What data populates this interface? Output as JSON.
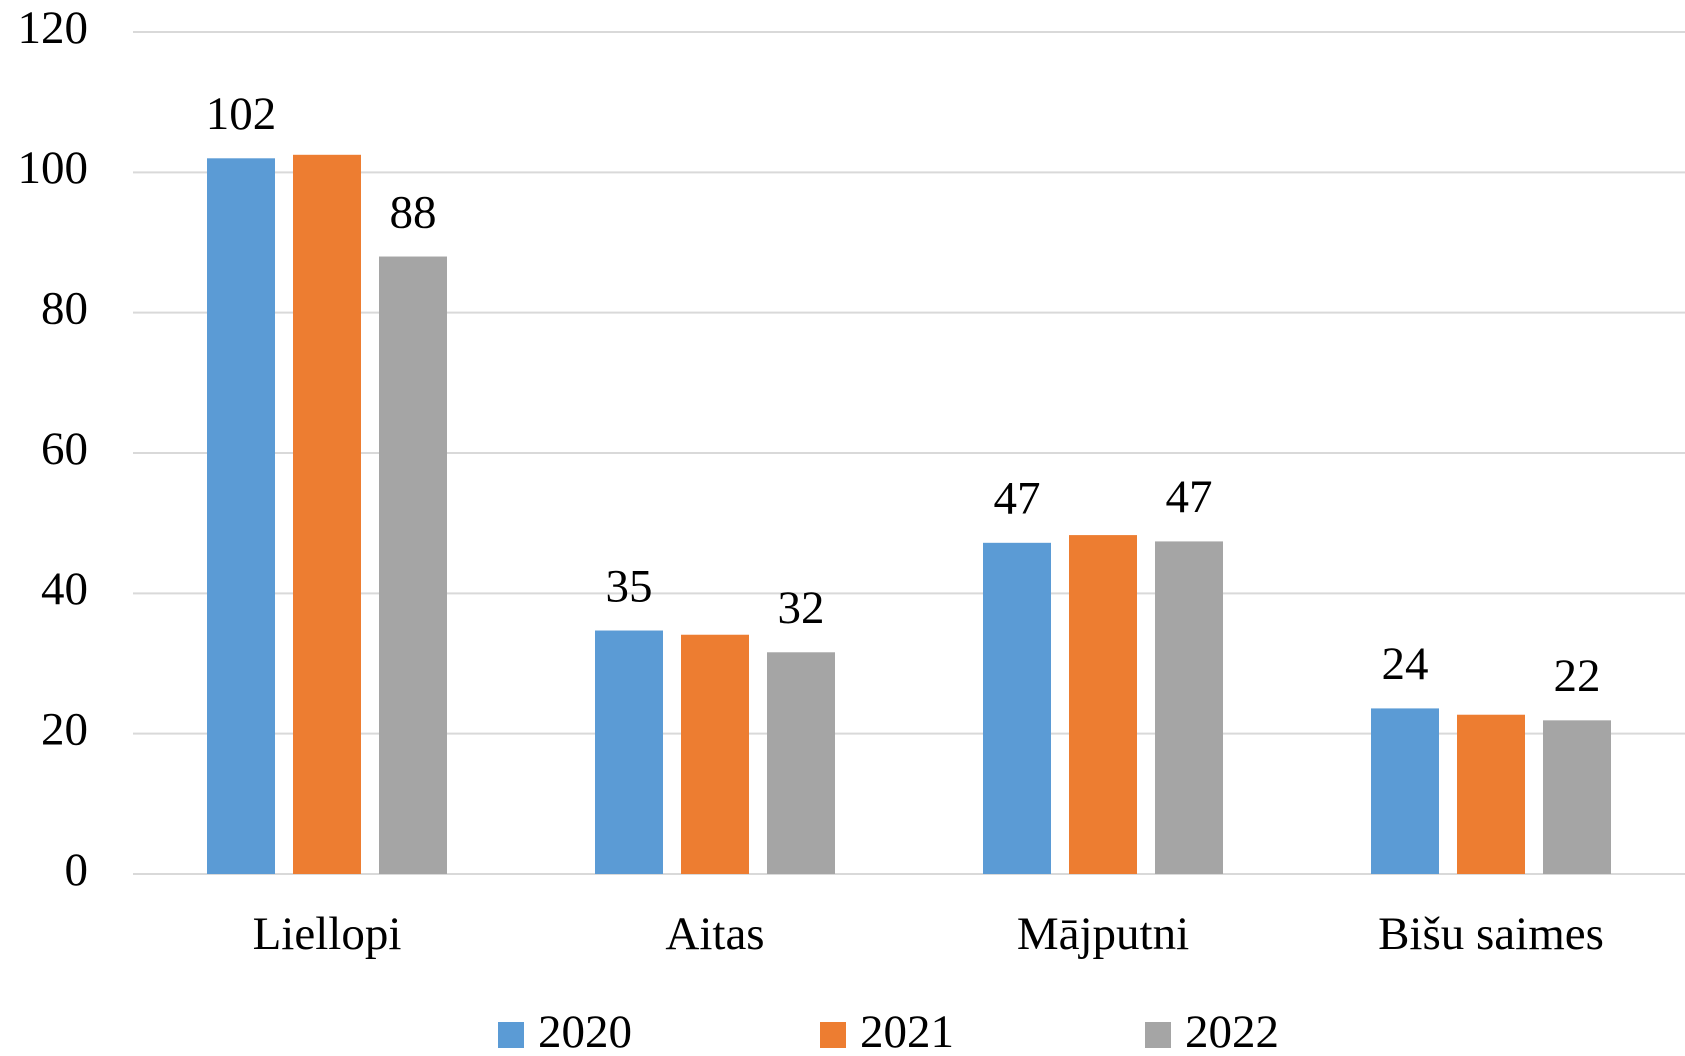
{
  "chart_data": {
    "type": "bar",
    "categories": [
      "Liellopi",
      "Aitas",
      "Mājputni",
      "Bišu saimes"
    ],
    "series": [
      {
        "name": "2020",
        "color": "#5b9bd5",
        "values": [
          102,
          34.7,
          47.2,
          23.6
        ],
        "value_labels": [
          "102",
          "35",
          "47",
          "24"
        ]
      },
      {
        "name": "2021",
        "color": "#ed7d31",
        "values": [
          102.5,
          34.1,
          48.3,
          22.7
        ]
      },
      {
        "name": "2022",
        "color": "#a5a5a5",
        "values": [
          88,
          31.6,
          47.4,
          21.9
        ],
        "value_labels": [
          "88",
          "32",
          "47",
          "22"
        ]
      }
    ],
    "ylim": [
      0,
      120
    ],
    "yticks": [
      0,
      20,
      40,
      60,
      80,
      100,
      120
    ],
    "grid": true,
    "legend": "bottom"
  }
}
